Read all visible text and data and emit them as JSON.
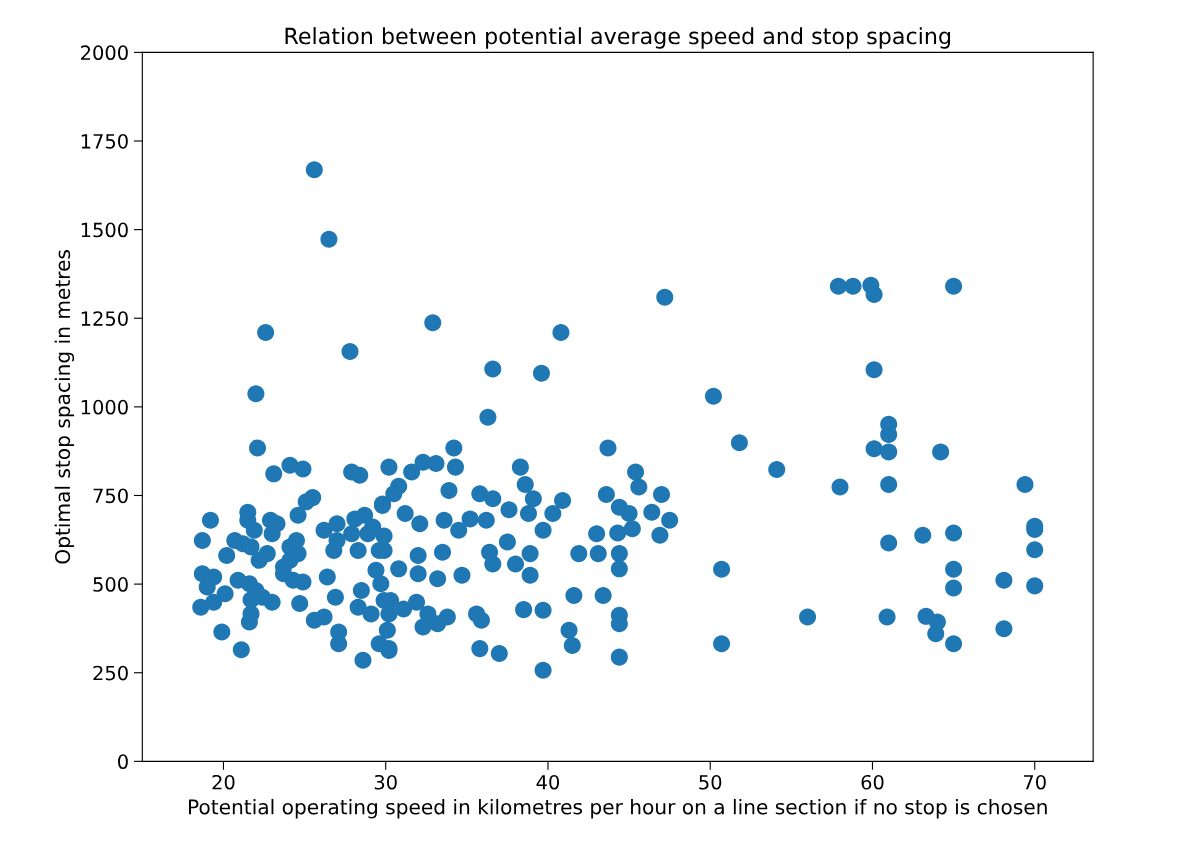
{
  "chart_data": {
    "type": "scatter",
    "title": "Relation between potential average speed and stop spacing",
    "xlabel": "Potential operating speed in kilometres per hour on a line section if no stop is chosen",
    "ylabel": "Optimal stop spacing in metres",
    "xlim": [
      15.0,
      73.6
    ],
    "xticks": [
      20,
      30,
      40,
      50,
      60,
      70
    ],
    "ylim": [
      0,
      2000
    ],
    "yticks": [
      0,
      250,
      500,
      750,
      1000,
      1250,
      1500,
      1750,
      2000
    ],
    "grid": false,
    "marker": "circle",
    "series": [
      {
        "color": "#1f77b4",
        "x": [
          25.6,
          26.5,
          47.2,
          22.6,
          27.8,
          32.9,
          36.6,
          39.6,
          40.8,
          22.0,
          57.9,
          58.8,
          59.9,
          60.1,
          65.0,
          60.1,
          50.2,
          61.0,
          61.0,
          60.1,
          61.0,
          64.2,
          51.8,
          54.1,
          58.0,
          61.0,
          69.4,
          70.0,
          70.0,
          70.0,
          70.0,
          61.0,
          63.1,
          65.0,
          65.0,
          65.0,
          68.1,
          68.1,
          50.7,
          50.7,
          56.0,
          60.9,
          63.3,
          64.0,
          63.9,
          65.0,
          43.7,
          45.4,
          45.6,
          47.0,
          43.6,
          44.4,
          45.0,
          45.2,
          44.3,
          46.4,
          47.5,
          46.9,
          40.9,
          40.3,
          39.7,
          43.0,
          43.1,
          41.9,
          44.4,
          44.4,
          41.6,
          43.4,
          44.4,
          44.4,
          41.3,
          41.5,
          44.4,
          39.7,
          39.7,
          36.3,
          34.2,
          34.3,
          30.2,
          32.3,
          33.1,
          31.6,
          30.8,
          33.9,
          35.8,
          36.6,
          37.6,
          38.3,
          38.6,
          39.1,
          38.8,
          29.8,
          31.2,
          32.1,
          33.6,
          34.5,
          35.2,
          36.2,
          37.5,
          36.4,
          36.6,
          38.0,
          38.9,
          38.9,
          29.9,
          32.0,
          33.5,
          30.8,
          32.0,
          33.2,
          34.7,
          29.9,
          31.9,
          31.1,
          32.6,
          33.8,
          33.2,
          32.3,
          35.6,
          35.9,
          38.5,
          30.1,
          30.2,
          35.8,
          37.0,
          22.1,
          23.1,
          24.1,
          24.9,
          27.9,
          28.4,
          25.5,
          25.1,
          24.6,
          19.2,
          18.7,
          21.5,
          21.5,
          22.9,
          23.3,
          23.0,
          21.9,
          21.2,
          20.7,
          20.2,
          21.7,
          22.7,
          22.2,
          24.1,
          24.5,
          24.6,
          24.1,
          23.7,
          24.3,
          24.9,
          26.4,
          24.7,
          26.2,
          27.0,
          28.1,
          28.7,
          29.2,
          28.9,
          27.9,
          27.0,
          26.8,
          28.3,
          29.6,
          29.9,
          30.5,
          29.8,
          19.4,
          18.7,
          19.0,
          20.1,
          18.6,
          19.4,
          20.9,
          21.6,
          21.7,
          22.0,
          22.4,
          23.0,
          21.7,
          21.6,
          19.9,
          21.1,
          23.7,
          26.9,
          25.6,
          26.2,
          27.1,
          27.1,
          28.5,
          28.3,
          28.6,
          29.1,
          29.6,
          30.2,
          29.4,
          29.7,
          30.3,
          30.2
        ],
        "values": [
          1669,
          1473,
          1309,
          1210,
          1156,
          1237,
          1107,
          1095,
          1210,
          1037,
          1340,
          1340,
          1343,
          1317,
          1340,
          1105,
          1030,
          951,
          922,
          882,
          873,
          873,
          899,
          823,
          774,
          781,
          781,
          663,
          654,
          597,
          495,
          616,
          638,
          644,
          542,
          489,
          511,
          374,
          542,
          332,
          407,
          407,
          409,
          393,
          360,
          332,
          884,
          816,
          774,
          753,
          753,
          717,
          699,
          656,
          644,
          703,
          680,
          638,
          736,
          699,
          652,
          642,
          586,
          586,
          586,
          543,
          468,
          468,
          412,
          388,
          370,
          327,
          294,
          426,
          257,
          971,
          884,
          830,
          830,
          844,
          840,
          816,
          776,
          764,
          755,
          741,
          710,
          830,
          781,
          741,
          699,
          726,
          699,
          670,
          680,
          652,
          684,
          680,
          619,
          590,
          557,
          557,
          586,
          525,
          595,
          581,
          590,
          543,
          529,
          515,
          525,
          454,
          449,
          430,
          416,
          407,
          388,
          379,
          416,
          398,
          428,
          370,
          318,
          318,
          304,
          884,
          811,
          835,
          825,
          816,
          807,
          744,
          732,
          694,
          680,
          623,
          703,
          680,
          680,
          670,
          642,
          652,
          614,
          623,
          581,
          605,
          586,
          567,
          605,
          623,
          586,
          567,
          548,
          511,
          506,
          520,
          445,
          652,
          670,
          684,
          694,
          661,
          642,
          642,
          623,
          595,
          595,
          595,
          636,
          755,
          722,
          520,
          529,
          492,
          473,
          435,
          449,
          511,
          501,
          456,
          482,
          463,
          449,
          416,
          393,
          365,
          315,
          529,
          463,
          398,
          407,
          365,
          332,
          482,
          435,
          285,
          416,
          332,
          313,
          539,
          501,
          454,
          416
        ]
      }
    ]
  }
}
